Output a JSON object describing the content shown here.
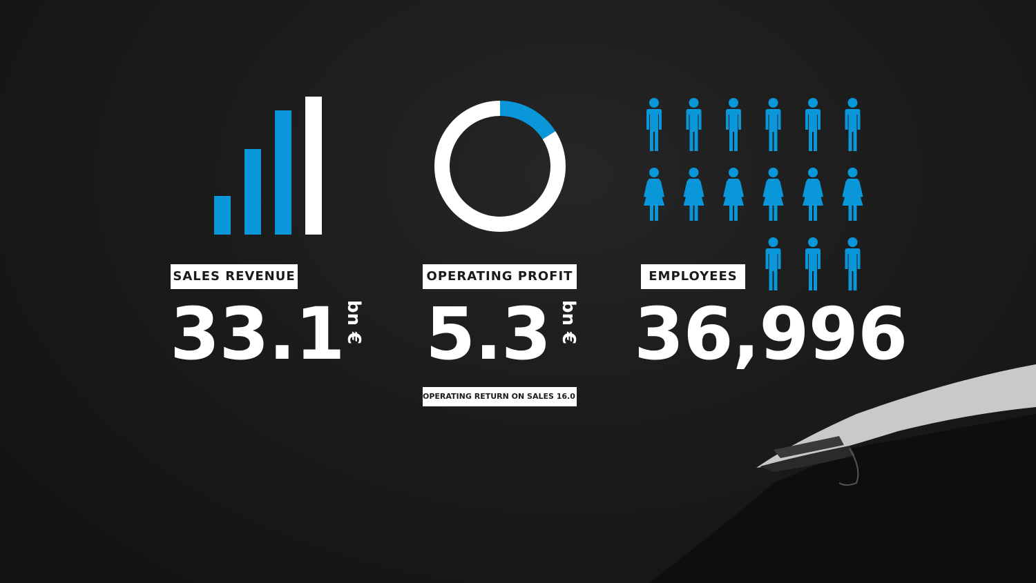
{
  "colors": {
    "background": "#1b1b1b",
    "accent": "#0a97d9",
    "white": "#ffffff"
  },
  "sales": {
    "label": "SALES REVENUE",
    "value": "33.1",
    "unit": "bn €",
    "icon": "bar-chart-icon"
  },
  "profit": {
    "label": "OPERATING PROFIT",
    "value": "5.3",
    "unit": "bn €",
    "sub_label": "OPERATING RETURN ON SALES 16.0 %",
    "icon": "donut-chart-icon"
  },
  "employees": {
    "label": "EMPLOYEES",
    "value": "36,996",
    "icon": "people-icon"
  },
  "chart_data": [
    {
      "type": "bar",
      "categories": [
        "1",
        "2",
        "3",
        "4"
      ],
      "values": [
        28,
        62,
        90,
        100
      ],
      "ylim": [
        0,
        100
      ],
      "highlight_colors": [
        "#0a97d9",
        "#0a97d9",
        "#0a97d9",
        "#ffffff"
      ]
    },
    {
      "type": "pie",
      "values": [
        16.0,
        84.0
      ],
      "colors": [
        "#0a97d9",
        "#ffffff"
      ]
    },
    {
      "type": "pictogram",
      "rows": [
        {
          "figure": "man",
          "count": 6
        },
        {
          "figure": "woman",
          "count": 6
        },
        {
          "figure": "man",
          "count": 3
        }
      ]
    }
  ]
}
